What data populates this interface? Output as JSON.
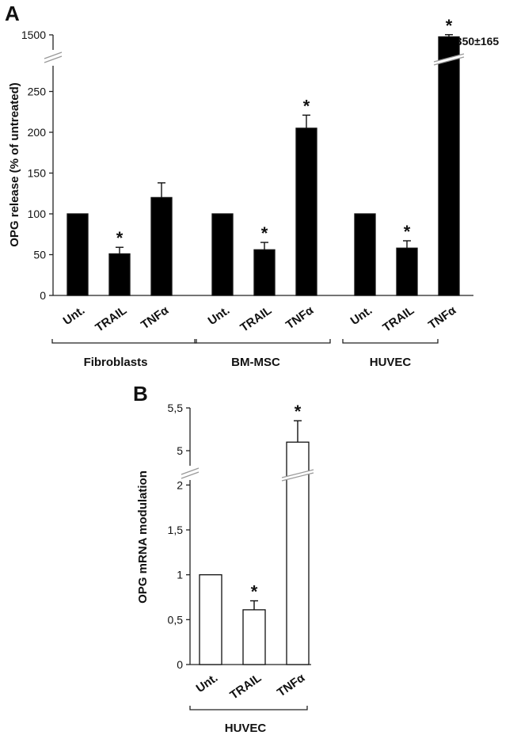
{
  "panels": {
    "a": {
      "letter": "A",
      "ylabel": "OPG release (% of untreated)",
      "annotation": "1350±165",
      "groups": [
        "Fibroblasts",
        "BM-MSC",
        "HUVEC"
      ]
    },
    "b": {
      "letter": "B",
      "ylabel": "OPG mRNA modulation",
      "groups": [
        "HUVEC"
      ]
    }
  },
  "chart_data": [
    {
      "type": "bar",
      "panel": "A",
      "categories": [
        "Unt.",
        "TRAIL",
        "TNFα",
        "Unt.",
        "TRAIL",
        "TNFα",
        "Unt.",
        "TRAIL",
        "TNFα"
      ],
      "groups": [
        "Fibroblasts",
        "BM-MSC",
        "HUVEC"
      ],
      "values": [
        100,
        51,
        120,
        100,
        56,
        205,
        100,
        58,
        1350
      ],
      "errors": [
        0,
        8,
        18,
        0,
        9,
        16,
        0,
        9,
        165
      ],
      "significant": [
        false,
        true,
        false,
        false,
        true,
        true,
        false,
        true,
        true
      ],
      "ylabel": "OPG release (% of untreated)",
      "yticks": [
        "0",
        "50",
        "100",
        "150",
        "200",
        "250",
        "1500"
      ],
      "axis_break": [
        300,
        1300
      ],
      "ylim": [
        0,
        1500
      ],
      "bar_color": "#000000"
    },
    {
      "type": "bar",
      "panel": "B",
      "categories": [
        "Unt.",
        "TRAIL",
        "TNFα"
      ],
      "groups": [
        "HUVEC"
      ],
      "values": [
        1.0,
        0.61,
        5.1
      ],
      "errors": [
        0,
        0.1,
        0.25
      ],
      "significant": [
        false,
        true,
        true
      ],
      "ylabel": "OPG mRNA modulation",
      "yticks": [
        "0",
        "0,5",
        "1",
        "1,5",
        "2",
        "5",
        "5,5"
      ],
      "axis_break": [
        2.25,
        4.5
      ],
      "ylim": [
        0,
        5.5
      ],
      "bar_color": "#ffffff"
    }
  ]
}
